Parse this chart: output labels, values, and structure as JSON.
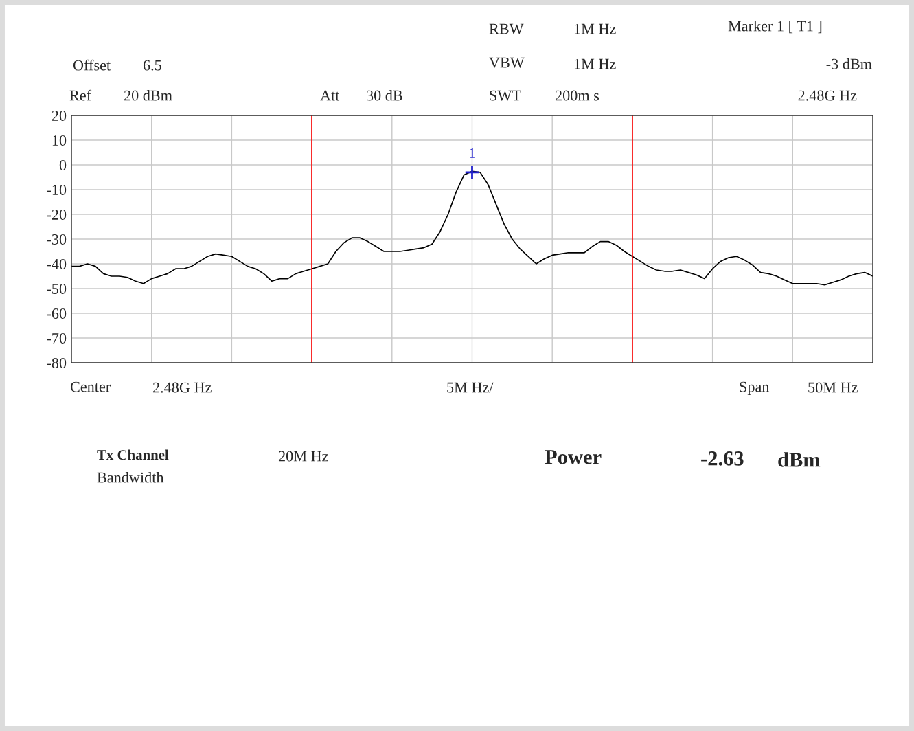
{
  "chart_data": {
    "type": "line",
    "categories": [
      null,
      null,
      null,
      null,
      null,
      null,
      null,
      null,
      null,
      null,
      null,
      null,
      null,
      null,
      null,
      null,
      null,
      null,
      null,
      null,
      null,
      null,
      null,
      null,
      null,
      null,
      null,
      null,
      null,
      null,
      null,
      null,
      null,
      null,
      null,
      null,
      null,
      null,
      null,
      null,
      null,
      null,
      null,
      null,
      null,
      null,
      null,
      null,
      null,
      null,
      null,
      null,
      null,
      null,
      null,
      null,
      null,
      null,
      null,
      null,
      null,
      null,
      null,
      null,
      null,
      null,
      null,
      null,
      null,
      null,
      null,
      null,
      null,
      null,
      null,
      null,
      null,
      null,
      null,
      null,
      null,
      null,
      null,
      null,
      null,
      null,
      null,
      null,
      null,
      null,
      null,
      null,
      null,
      null,
      null,
      null,
      null,
      null,
      null,
      null,
      null
    ],
    "series": [
      {
        "color": "#000000",
        "values": [
          -41,
          -41,
          -40,
          -41,
          -44,
          -45,
          -45,
          -45.5,
          -47,
          -48,
          -46,
          -45,
          -44,
          -42,
          -42,
          -41,
          -39,
          -37,
          -36,
          -36.5,
          -37,
          -39,
          -41,
          -42,
          -44,
          -47,
          -46,
          -46,
          -44,
          -43,
          -42,
          -41,
          -40,
          -35,
          -31.5,
          -29.5,
          -29.5,
          -31,
          -33,
          -35,
          -35,
          -35,
          -34.5,
          -34,
          -33.5,
          -32,
          -27,
          -20,
          -11,
          -4,
          -2.6,
          -3,
          -8,
          -16,
          -24,
          -30,
          -34,
          -37,
          -40,
          -38,
          -36.5,
          -36,
          -35.5,
          -35.5,
          -35.5,
          -33,
          -31,
          -31,
          -32.5,
          -35,
          -37,
          -39,
          -41,
          -42.5,
          -43,
          -43,
          -42.5,
          -43.5,
          -44.5,
          -46,
          -42,
          -39,
          -37.5,
          -37,
          -38.5,
          -40.5,
          -43.5,
          -44,
          -45,
          -46.5,
          -48,
          -48,
          -48,
          -48,
          -48.5,
          -47.5,
          -46.5,
          -45,
          -44,
          -43.5,
          -45
        ]
      }
    ],
    "ylim": [
      -80,
      20
    ],
    "yticks": [
      20,
      10,
      0,
      -10,
      -20,
      -30,
      -40,
      -50,
      -60,
      -70,
      -80
    ],
    "tick_labels": "y",
    "grid": true,
    "annotations": [
      "RBW",
      "1M Hz",
      "Marker 1 [ T1 ]",
      "Offset",
      "6.5",
      "VBW",
      "1M Hz",
      "-3 dBm",
      "Ref",
      "20 dBm",
      "Att",
      "30 dB",
      "SWT",
      "200m s",
      "2.48G Hz",
      "Center",
      "2.48G Hz",
      "5M Hz/",
      "Span",
      "50M Hz",
      "Tx Channel",
      "Bandwidth",
      "20M Hz",
      "Power",
      "-2.63",
      "dBm",
      {
        "text": "1",
        "y": -3
      }
    ]
  }
}
